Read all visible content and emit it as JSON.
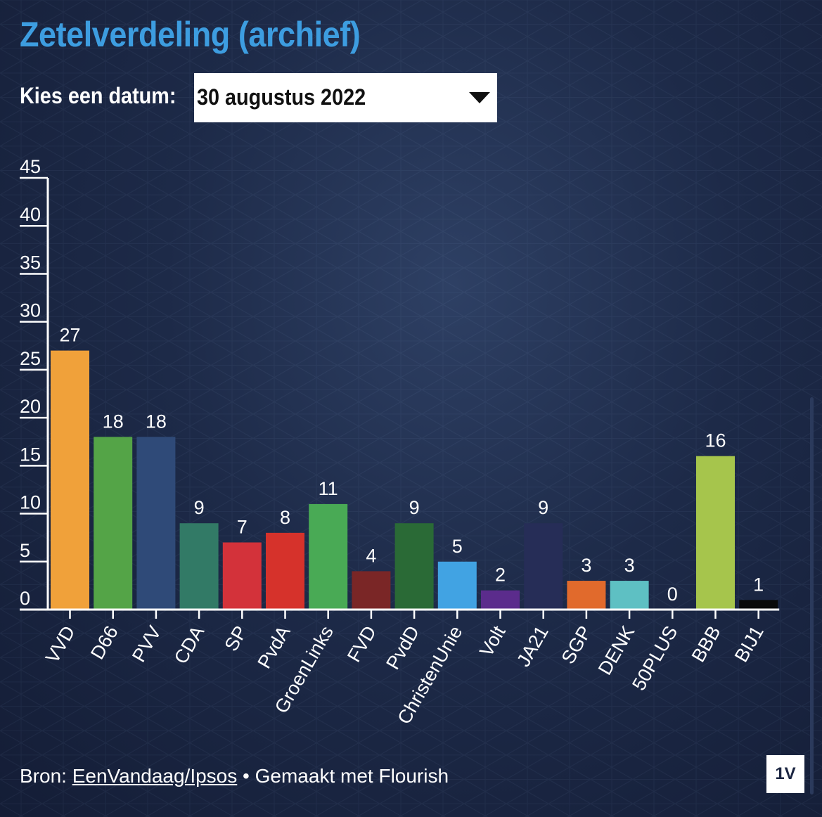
{
  "header": {
    "title": "Zetelverdeling (archief)"
  },
  "date_picker": {
    "label": "Kies een datum:",
    "selected": "30 augustus 2022"
  },
  "chart_data": {
    "type": "bar",
    "title": "",
    "xlabel": "",
    "ylabel": "",
    "ylim": [
      0,
      45
    ],
    "yticks": [
      0,
      5,
      10,
      15,
      20,
      25,
      30,
      35,
      40,
      45
    ],
    "grid": false,
    "categories": [
      "VVD",
      "D66",
      "PVV",
      "CDA",
      "SP",
      "PvdA",
      "GroenLinks",
      "FVD",
      "PvdD",
      "ChristenUnie",
      "Volt",
      "JA21",
      "SGP",
      "DENK",
      "50PLUS",
      "BBB",
      "BIJ1"
    ],
    "values": [
      27,
      18,
      18,
      9,
      7,
      8,
      11,
      4,
      9,
      5,
      2,
      9,
      3,
      3,
      0,
      16,
      1
    ],
    "colors": [
      "#f0a13a",
      "#54a447",
      "#2f4a78",
      "#327a66",
      "#d3323a",
      "#d6322b",
      "#49aa55",
      "#7a2626",
      "#2a6a36",
      "#41a3e3",
      "#5b2c8c",
      "#262d57",
      "#e16a2c",
      "#5ec0c3",
      "#1f2b4a",
      "#a6c54c",
      "#0a0a0a"
    ]
  },
  "footer": {
    "source_prefix": "Bron: ",
    "source_link": "EenVandaag/Ipsos",
    "made_with": " • Gemaakt met Flourish",
    "logo": "1V"
  }
}
